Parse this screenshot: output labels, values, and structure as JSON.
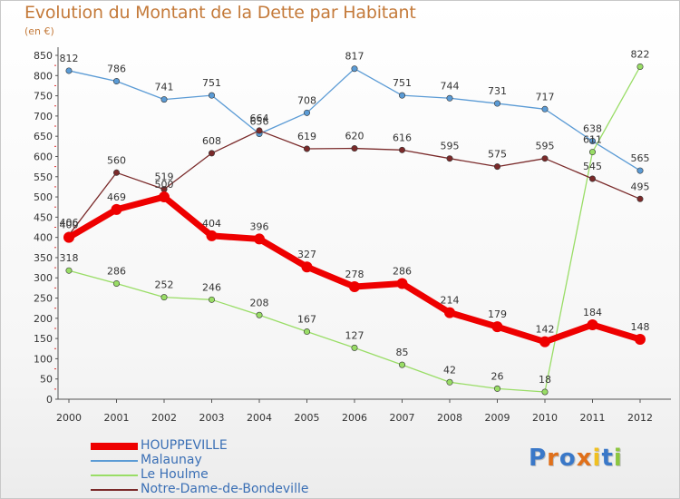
{
  "header": {
    "title": "Evolution du Montant de la Dette par Habitant",
    "subtitle": "(en €)"
  },
  "chart_data": {
    "type": "line",
    "title": "Evolution du Montant de la Dette par Habitant",
    "subtitle": "(en €)",
    "xlabel": "",
    "ylabel": "",
    "x": [
      "2000",
      "2001",
      "2002",
      "2003",
      "2004",
      "2005",
      "2006",
      "2007",
      "2008",
      "2009",
      "2010",
      "2011",
      "2012"
    ],
    "ylim": [
      0,
      850
    ],
    "yticks": [
      0,
      50,
      100,
      150,
      200,
      250,
      300,
      350,
      400,
      450,
      500,
      550,
      600,
      650,
      700,
      750,
      800,
      850
    ],
    "grid": false,
    "legend": "bottom-left",
    "series": [
      {
        "name": "HOUPPEVILLE",
        "color": "#ee0000",
        "bold": true,
        "values": [
          400,
          469,
          500,
          404,
          396,
          327,
          278,
          286,
          214,
          179,
          142,
          184,
          148
        ]
      },
      {
        "name": "Malaunay",
        "color": "#5b9bd5",
        "bold": false,
        "values": [
          812,
          786,
          741,
          751,
          656,
          708,
          817,
          751,
          744,
          731,
          717,
          638,
          565
        ]
      },
      {
        "name": "Le Houlme",
        "color": "#99dd66",
        "bold": false,
        "values": [
          318,
          286,
          252,
          246,
          208,
          167,
          127,
          85,
          42,
          26,
          18,
          611,
          822
        ]
      },
      {
        "name": "Notre-Dame-de-Bondeville",
        "color": "#7a2a2a",
        "bold": false,
        "values": [
          406,
          560,
          519,
          608,
          664,
          619,
          620,
          616,
          595,
          575,
          595,
          545,
          495
        ]
      }
    ]
  },
  "logo": {
    "letters": [
      "P",
      "r",
      "o",
      "x",
      "i",
      "t",
      "i"
    ],
    "colors": [
      "#3a78c8",
      "#e0701a",
      "#3a78c8",
      "#e0701a",
      "#f0c020",
      "#3a78c8",
      "#8cc63f"
    ]
  }
}
